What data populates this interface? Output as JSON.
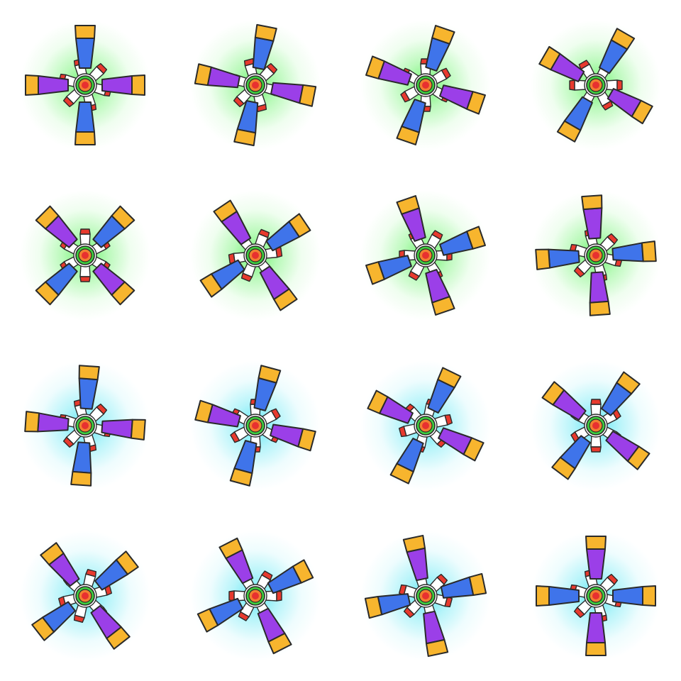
{
  "sprite_sheet": {
    "grid": {
      "rows": 4,
      "columns": 4
    },
    "colors": {
      "background": "#ffffff",
      "blade_blue": "#3f74ea",
      "blade_purple": "#9b3fe8",
      "blade_tip": "#f7b52e",
      "outline": "#2a2a2a",
      "fin_white": "#ffffff",
      "fin_red": "#e83a2e",
      "hub_green": "#3fcf3f",
      "hub_orange": "#f08030",
      "hub_red": "#e83030",
      "glow_green": "#3cf03c",
      "glow_cyan": "#2ee0f0"
    },
    "frames": [
      {
        "frame": 1,
        "blade_angle_deg": 0,
        "fin_angle_deg": 45,
        "glow": "green"
      },
      {
        "frame": 2,
        "blade_angle_deg": 11,
        "fin_angle_deg": 45,
        "glow": "green"
      },
      {
        "frame": 3,
        "blade_angle_deg": 19,
        "fin_angle_deg": 60,
        "glow": "green"
      },
      {
        "frame": 4,
        "blade_angle_deg": 30,
        "fin_angle_deg": 90,
        "glow": "green"
      },
      {
        "frame": 5,
        "blade_angle_deg": 45,
        "fin_angle_deg": 0,
        "glow": "green"
      },
      {
        "frame": 6,
        "blade_angle_deg": 56,
        "fin_angle_deg": 22,
        "glow": "green"
      },
      {
        "frame": 7,
        "blade_angle_deg": 71,
        "fin_angle_deg": 30,
        "glow": "green"
      },
      {
        "frame": 8,
        "blade_angle_deg": 86,
        "fin_angle_deg": 45,
        "glow": "green"
      },
      {
        "frame": 9,
        "blade_angle_deg": 4,
        "fin_angle_deg": 45,
        "glow": "cyan"
      },
      {
        "frame": 10,
        "blade_angle_deg": 15,
        "fin_angle_deg": 60,
        "glow": "cyan"
      },
      {
        "frame": 11,
        "blade_angle_deg": 26,
        "fin_angle_deg": 75,
        "glow": "cyan"
      },
      {
        "frame": 12,
        "blade_angle_deg": 37,
        "fin_angle_deg": 0,
        "glow": "cyan"
      },
      {
        "frame": 13,
        "blade_angle_deg": 52,
        "fin_angle_deg": 15,
        "glow": "cyan"
      },
      {
        "frame": 14,
        "blade_angle_deg": 63,
        "fin_angle_deg": 30,
        "glow": "cyan"
      },
      {
        "frame": 15,
        "blade_angle_deg": 78,
        "fin_angle_deg": 45,
        "glow": "cyan"
      },
      {
        "frame": 16,
        "blade_angle_deg": 90,
        "fin_angle_deg": 45,
        "glow": "cyan"
      }
    ]
  }
}
